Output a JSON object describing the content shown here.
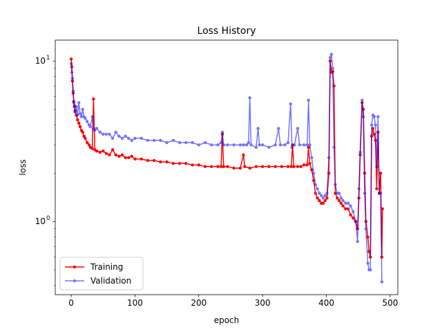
{
  "chart_data": {
    "type": "line",
    "title": "Loss History",
    "xlabel": "epoch",
    "ylabel": "loss",
    "yscale": "log",
    "xlim": [
      -25,
      512
    ],
    "ylim": [
      0.35,
      13.5
    ],
    "x_ticks": [
      0,
      100,
      200,
      300,
      400,
      500
    ],
    "x_tick_labels": [
      "0",
      "100",
      "200",
      "300",
      "400",
      "500"
    ],
    "y_major_ticks": [
      1,
      10
    ],
    "y_major_tick_labels": [
      "10",
      "10"
    ],
    "y_major_tick_exponents": [
      "0",
      "1"
    ],
    "y_minor_ticks": [
      0.4,
      0.5,
      0.6,
      0.7,
      0.8,
      0.9,
      2,
      3,
      4,
      5,
      6,
      7,
      8,
      9
    ],
    "grid": false,
    "legend_position": "lower-left",
    "series": [
      {
        "name": "Training",
        "color": "#ff0000",
        "opacity": 1.0,
        "points": [
          [
            0,
            10.3
          ],
          [
            1,
            9.2
          ],
          [
            2,
            7.5
          ],
          [
            3,
            6.3
          ],
          [
            4,
            5.6
          ],
          [
            5,
            5.2
          ],
          [
            6,
            4.9
          ],
          [
            8,
            4.6
          ],
          [
            10,
            4.3
          ],
          [
            12,
            4.1
          ],
          [
            14,
            3.9
          ],
          [
            16,
            3.7
          ],
          [
            18,
            3.6
          ],
          [
            20,
            3.4
          ],
          [
            22,
            3.3
          ],
          [
            25,
            3.1
          ],
          [
            28,
            3.0
          ],
          [
            30,
            2.9
          ],
          [
            33,
            2.85
          ],
          [
            35,
            5.8
          ],
          [
            37,
            2.8
          ],
          [
            40,
            2.75
          ],
          [
            45,
            2.7
          ],
          [
            50,
            2.75
          ],
          [
            55,
            2.65
          ],
          [
            60,
            2.6
          ],
          [
            65,
            2.8
          ],
          [
            70,
            2.6
          ],
          [
            75,
            2.55
          ],
          [
            80,
            2.6
          ],
          [
            85,
            2.5
          ],
          [
            90,
            2.5
          ],
          [
            95,
            2.55
          ],
          [
            100,
            2.45
          ],
          [
            110,
            2.45
          ],
          [
            120,
            2.4
          ],
          [
            130,
            2.4
          ],
          [
            140,
            2.35
          ],
          [
            150,
            2.35
          ],
          [
            160,
            2.3
          ],
          [
            170,
            2.3
          ],
          [
            180,
            2.3
          ],
          [
            190,
            2.25
          ],
          [
            200,
            2.25
          ],
          [
            210,
            2.2
          ],
          [
            220,
            2.2
          ],
          [
            230,
            2.2
          ],
          [
            235,
            2.2
          ],
          [
            237,
            3.5
          ],
          [
            239,
            2.2
          ],
          [
            245,
            2.2
          ],
          [
            255,
            2.15
          ],
          [
            265,
            2.15
          ],
          [
            270,
            2.6
          ],
          [
            272,
            2.2
          ],
          [
            280,
            2.15
          ],
          [
            290,
            2.2
          ],
          [
            300,
            2.2
          ],
          [
            310,
            2.2
          ],
          [
            320,
            2.2
          ],
          [
            330,
            2.2
          ],
          [
            340,
            2.2
          ],
          [
            345,
            2.2
          ],
          [
            347,
            3.0
          ],
          [
            349,
            2.2
          ],
          [
            355,
            2.2
          ],
          [
            360,
            2.2
          ],
          [
            365,
            2.25
          ],
          [
            370,
            2.25
          ],
          [
            372,
            2.9
          ],
          [
            374,
            2.3
          ],
          [
            377,
            2.1
          ],
          [
            380,
            1.8
          ],
          [
            383,
            1.5
          ],
          [
            386,
            1.4
          ],
          [
            389,
            1.35
          ],
          [
            392,
            1.3
          ],
          [
            395,
            1.3
          ],
          [
            398,
            1.35
          ],
          [
            401,
            1.4
          ],
          [
            404,
            2.0
          ],
          [
            406,
            10.0
          ],
          [
            408,
            8.5
          ],
          [
            410,
            8.6
          ],
          [
            412,
            7.0
          ],
          [
            414,
            1.5
          ],
          [
            417,
            1.4
          ],
          [
            420,
            1.35
          ],
          [
            423,
            1.3
          ],
          [
            426,
            1.25
          ],
          [
            430,
            1.2
          ],
          [
            434,
            1.2
          ],
          [
            438,
            1.1
          ],
          [
            442,
            1.05
          ],
          [
            446,
            1.0
          ],
          [
            449,
            0.9
          ],
          [
            451,
            1.4
          ],
          [
            453,
            2.6
          ],
          [
            456,
            5.5
          ],
          [
            458,
            5.0
          ],
          [
            460,
            2.0
          ],
          [
            462,
            1.0
          ],
          [
            465,
            0.8
          ],
          [
            467,
            0.65
          ],
          [
            469,
            0.6
          ],
          [
            471,
            3.4
          ],
          [
            473,
            3.8
          ],
          [
            475,
            3.5
          ],
          [
            477,
            3.2
          ],
          [
            479,
            1.6
          ],
          [
            481,
            3.6
          ],
          [
            483,
            1.5
          ],
          [
            485,
            2.0
          ],
          [
            487,
            0.6
          ],
          [
            488,
            1.2
          ]
        ]
      },
      {
        "name": "Validation",
        "color": "#0000ff",
        "opacity": 0.55,
        "points": [
          [
            0,
            9.6
          ],
          [
            1,
            8.5
          ],
          [
            2,
            7.8
          ],
          [
            3,
            6.5
          ],
          [
            4,
            5.5
          ],
          [
            5,
            5.3
          ],
          [
            6,
            4.8
          ],
          [
            8,
            5.2
          ],
          [
            10,
            4.6
          ],
          [
            12,
            5.5
          ],
          [
            14,
            4.7
          ],
          [
            16,
            4.5
          ],
          [
            18,
            5.0
          ],
          [
            20,
            4.5
          ],
          [
            22,
            4.4
          ],
          [
            25,
            4.2
          ],
          [
            28,
            4.0
          ],
          [
            30,
            3.9
          ],
          [
            33,
            4.5
          ],
          [
            35,
            3.8
          ],
          [
            37,
            3.7
          ],
          [
            40,
            3.8
          ],
          [
            45,
            3.6
          ],
          [
            50,
            3.5
          ],
          [
            55,
            3.5
          ],
          [
            60,
            3.5
          ],
          [
            65,
            3.3
          ],
          [
            70,
            3.6
          ],
          [
            75,
            3.4
          ],
          [
            80,
            3.3
          ],
          [
            85,
            3.4
          ],
          [
            90,
            3.3
          ],
          [
            95,
            3.2
          ],
          [
            100,
            3.3
          ],
          [
            110,
            3.3
          ],
          [
            120,
            3.2
          ],
          [
            130,
            3.2
          ],
          [
            140,
            3.2
          ],
          [
            150,
            3.1
          ],
          [
            160,
            3.2
          ],
          [
            170,
            3.1
          ],
          [
            180,
            3.1
          ],
          [
            190,
            3.1
          ],
          [
            200,
            3.0
          ],
          [
            210,
            3.1
          ],
          [
            220,
            3.0
          ],
          [
            230,
            3.0
          ],
          [
            235,
            3.1
          ],
          [
            237,
            3.6
          ],
          [
            239,
            3.0
          ],
          [
            245,
            3.0
          ],
          [
            255,
            3.0
          ],
          [
            265,
            3.0
          ],
          [
            270,
            3.0
          ],
          [
            275,
            3.0
          ],
          [
            278,
            3.1
          ],
          [
            280,
            5.9
          ],
          [
            282,
            3.0
          ],
          [
            290,
            2.9
          ],
          [
            293,
            3.8
          ],
          [
            295,
            3.0
          ],
          [
            300,
            3.0
          ],
          [
            310,
            2.9
          ],
          [
            320,
            3.0
          ],
          [
            325,
            3.8
          ],
          [
            328,
            3.0
          ],
          [
            335,
            3.0
          ],
          [
            340,
            3.1
          ],
          [
            344,
            5.4
          ],
          [
            346,
            2.9
          ],
          [
            350,
            3.0
          ],
          [
            355,
            3.8
          ],
          [
            358,
            3.0
          ],
          [
            365,
            3.0
          ],
          [
            370,
            3.0
          ],
          [
            372,
            5.7
          ],
          [
            374,
            3.0
          ],
          [
            377,
            2.5
          ],
          [
            380,
            2.0
          ],
          [
            383,
            1.7
          ],
          [
            386,
            1.6
          ],
          [
            389,
            1.5
          ],
          [
            392,
            1.45
          ],
          [
            395,
            1.4
          ],
          [
            398,
            1.45
          ],
          [
            401,
            1.5
          ],
          [
            404,
            2.5
          ],
          [
            406,
            10.5
          ],
          [
            408,
            11.0
          ],
          [
            410,
            9.0
          ],
          [
            412,
            2.9
          ],
          [
            414,
            1.7
          ],
          [
            417,
            1.5
          ],
          [
            420,
            1.5
          ],
          [
            423,
            1.4
          ],
          [
            426,
            1.35
          ],
          [
            430,
            1.3
          ],
          [
            434,
            1.3
          ],
          [
            438,
            1.25
          ],
          [
            442,
            1.15
          ],
          [
            446,
            1.0
          ],
          [
            449,
            0.75
          ],
          [
            451,
            1.6
          ],
          [
            453,
            2.7
          ],
          [
            456,
            5.7
          ],
          [
            458,
            4.5
          ],
          [
            460,
            1.5
          ],
          [
            462,
            0.9
          ],
          [
            465,
            0.55
          ],
          [
            467,
            0.5
          ],
          [
            469,
            0.5
          ],
          [
            471,
            4.0
          ],
          [
            473,
            4.6
          ],
          [
            475,
            4.5
          ],
          [
            477,
            4.0
          ],
          [
            479,
            2.2
          ],
          [
            481,
            4.5
          ],
          [
            483,
            1.5
          ],
          [
            485,
            1.5
          ],
          [
            487,
            0.42
          ]
        ]
      }
    ]
  }
}
